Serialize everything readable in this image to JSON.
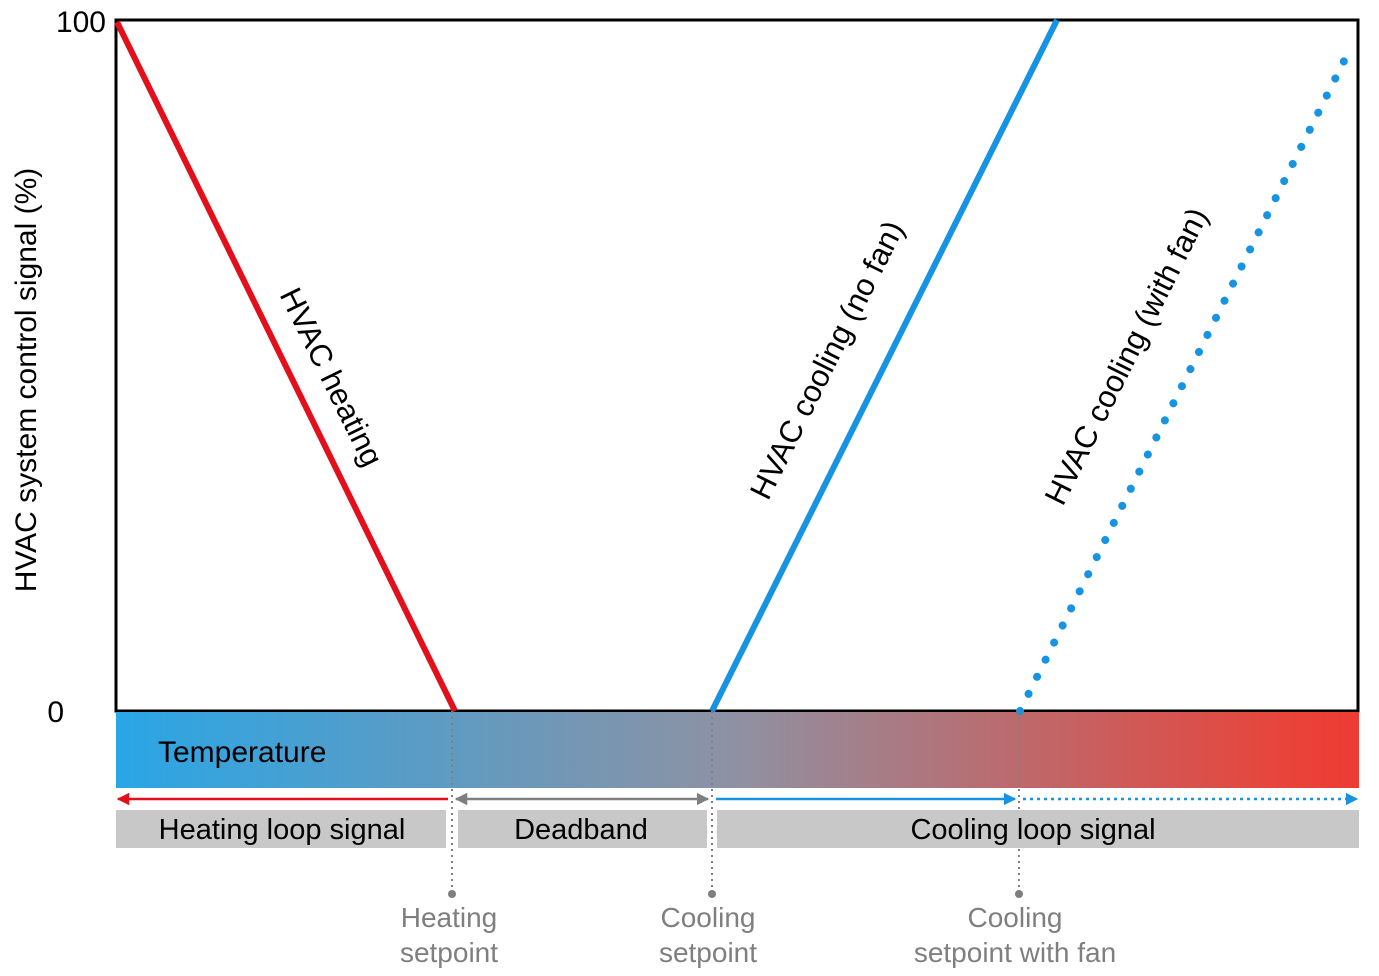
{
  "axis": {
    "ylabel": "HVAC system control signal (%)",
    "y_max_label": "100",
    "y_min_label": "0"
  },
  "temperature_bar": {
    "label": "Temperature",
    "color_cold": "#29a6e6",
    "color_mid": "#8f91a2",
    "color_hot": "#ee3b33"
  },
  "lines": {
    "heating": {
      "label": "HVAC heating",
      "color": "#e3101b"
    },
    "cooling_no_fan": {
      "label": "HVAC cooling (no fan)",
      "color": "#1793e3"
    },
    "cooling_with_fan": {
      "label": "HVAC cooling (with fan)",
      "color": "#1793e3"
    }
  },
  "loop_bars": {
    "heating": "Heating loop signal",
    "deadband": "Deadband",
    "cooling": "Cooling loop signal",
    "bar_color": "#c8c8c8",
    "arrow_heating_color": "#e3101b",
    "arrow_deadband_color": "#7f7f7f",
    "arrow_cooling_color": "#1793e3"
  },
  "setpoints": {
    "heating": {
      "line1": "Heating",
      "line2": "setpoint"
    },
    "cooling": {
      "line1": "Cooling",
      "line2": "setpoint"
    },
    "cooling_with_fan": {
      "line1": "Cooling",
      "line2": "setpoint with fan"
    },
    "marker_color": "#7f7f7f"
  }
}
